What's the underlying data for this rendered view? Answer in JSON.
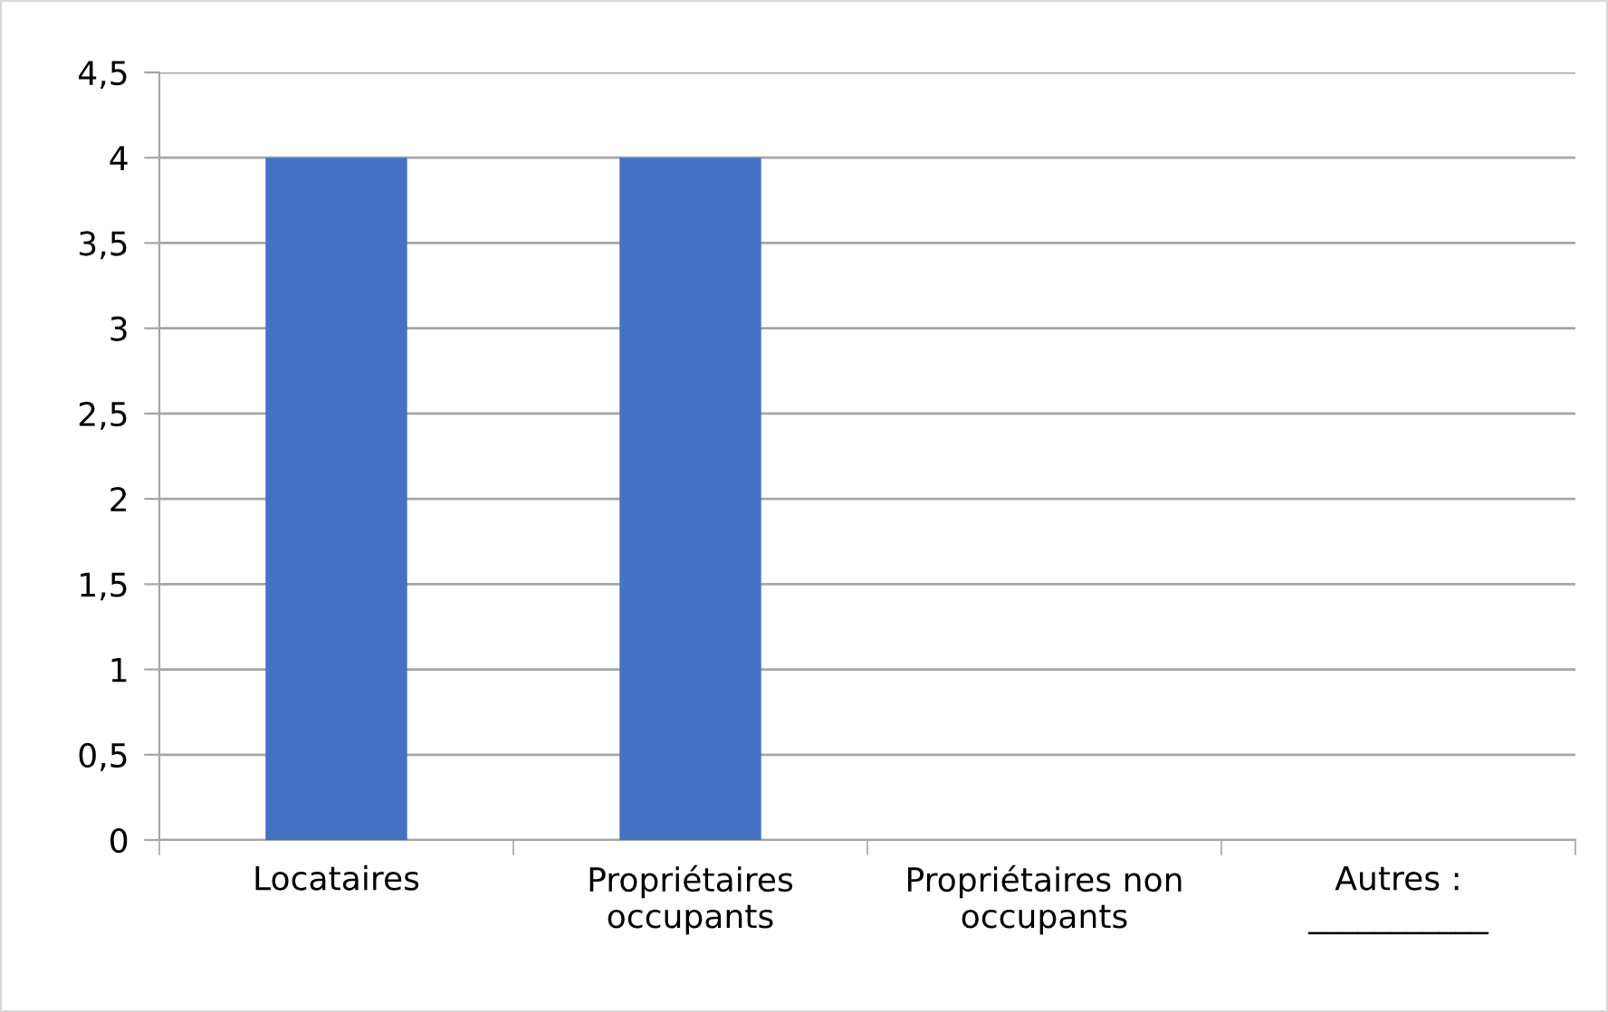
{
  "chart_data": {
    "type": "bar",
    "categories": [
      "Locataires",
      "Propriétaires\noccupants",
      "Propriétaires non\noccupants",
      "Autres :\n___________"
    ],
    "values": [
      4,
      4,
      0,
      0
    ],
    "color": "#4472c4",
    "ylim": [
      0,
      4.5
    ],
    "yticks": [
      0,
      {
        "value": 0.5,
        "label": "0,5"
      },
      1,
      {
        "value": 1.5,
        "label": "1,5"
      },
      2,
      {
        "value": 2.5,
        "label": "2,5"
      },
      3,
      {
        "value": 3.5,
        "label": "3,5"
      },
      4,
      {
        "value": 4.5,
        "label": "4,5"
      }
    ],
    "grid": "y"
  }
}
